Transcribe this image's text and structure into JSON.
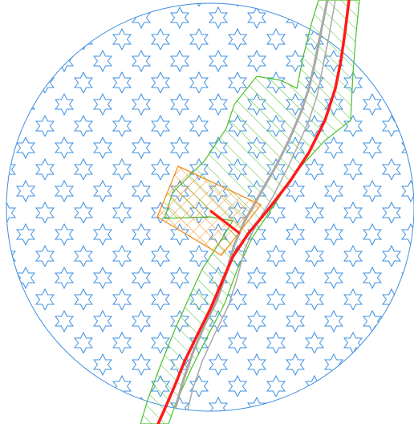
{
  "map": {
    "colors": {
      "background": "#ffffff",
      "buffer_outline": "#3d8fe0",
      "star_pattern": "#3d8fe0",
      "corridor_outline": "#4cbf2a",
      "corridor_hatch": "#4cbf2a",
      "site_outline": "#f0901e",
      "site_hatch": "#f0901e",
      "route_line": "#ff1a1a",
      "road_line": "#a8a8a8"
    },
    "patterns": {
      "buffer": "six-point-star",
      "corridor": "diagonal-hatch",
      "site": "cross-hatch"
    }
  }
}
